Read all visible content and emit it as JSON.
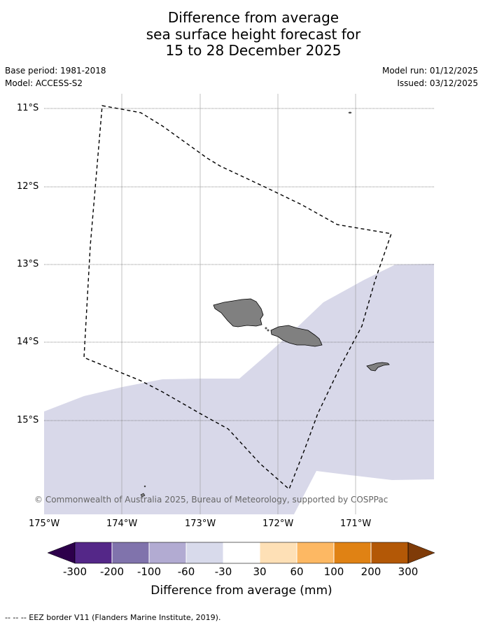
{
  "title": {
    "line1": "Difference from average",
    "line2": "sea surface height forecast for",
    "line3": "15 to 28 December 2025"
  },
  "meta": {
    "base_period": "Base period: 1981-2018",
    "model": "Model: ACCESS-S2",
    "model_run": "Model run: 01/12/2025",
    "issued": "Issued: 03/12/2025"
  },
  "map": {
    "lat_labels": [
      "11°S",
      "12°S",
      "13°S",
      "14°S",
      "15°S"
    ],
    "lon_labels": [
      "175°W",
      "174°W",
      "173°W",
      "172°W",
      "171°W"
    ],
    "copyright": "© Commonwealth of Australia 2025, Bureau of Meteorology, supported by COSPPac",
    "colors": {
      "anomaly_fill": "#d8d8e9",
      "land": "#808080",
      "grid": "#999999",
      "eez": "#000000"
    }
  },
  "colorbar": {
    "title": "Difference from average (mm)",
    "ticks": [
      "-300",
      "-200",
      "-100",
      "-60",
      "-30",
      "30",
      "60",
      "100",
      "200",
      "300"
    ],
    "colors": {
      "extend_low": "#2d004b",
      "c1": "#542788",
      "c2": "#8073ac",
      "c3": "#b2abd2",
      "c4": "#d8daeb",
      "c5": "#ffffff",
      "c6": "#fee0b6",
      "c7": "#fdb863",
      "c8": "#e08214",
      "c9": "#b35806",
      "extend_high": "#7f3b08"
    }
  },
  "footer": "-- -- -- EEZ border V11 (Flanders Marine Institute, 2019)."
}
